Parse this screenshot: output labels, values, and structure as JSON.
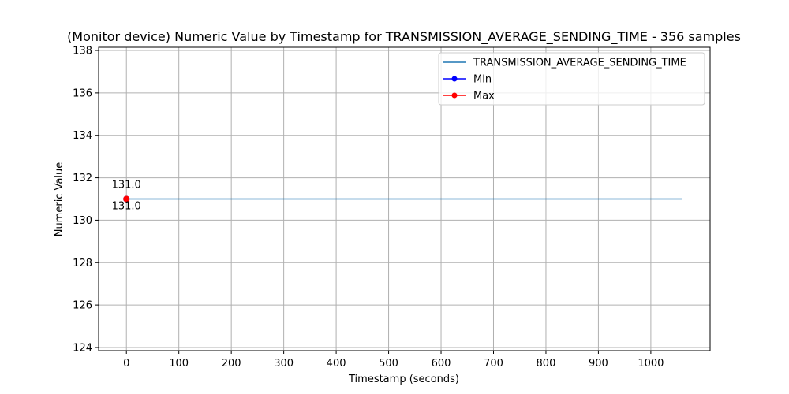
{
  "chart_data": {
    "type": "line",
    "title": "(Monitor device) Numeric Value by Timestamp for TRANSMISSION_AVERAGE_SENDING_TIME - 356 samples",
    "xlabel": "Timestamp (seconds)",
    "ylabel": "Numeric Value",
    "xlim": [
      -53,
      1113
    ],
    "ylim": [
      123.85,
      138.15
    ],
    "xticks": [
      0,
      100,
      200,
      300,
      400,
      500,
      600,
      700,
      800,
      900,
      1000
    ],
    "yticks": [
      124,
      126,
      128,
      130,
      132,
      134,
      136,
      138
    ],
    "grid": true,
    "legend_position": "top-right",
    "series": [
      {
        "name": "TRANSMISSION_AVERAGE_SENDING_TIME",
        "color": "#1f77b4",
        "x": [
          0,
          1060
        ],
        "y": [
          131.0,
          131.0
        ]
      },
      {
        "name": "Min",
        "color": "#0000ff",
        "marker": "circle",
        "x": [
          0
        ],
        "y": [
          131.0
        ]
      },
      {
        "name": "Max",
        "color": "#ff0000",
        "marker": "circle",
        "x": [
          0
        ],
        "y": [
          131.0
        ]
      }
    ],
    "annotations": [
      {
        "text": "131.0",
        "x": 0,
        "y": 131.0,
        "position": "above"
      },
      {
        "text": "131.0",
        "x": 0,
        "y": 131.0,
        "position": "below"
      }
    ]
  }
}
